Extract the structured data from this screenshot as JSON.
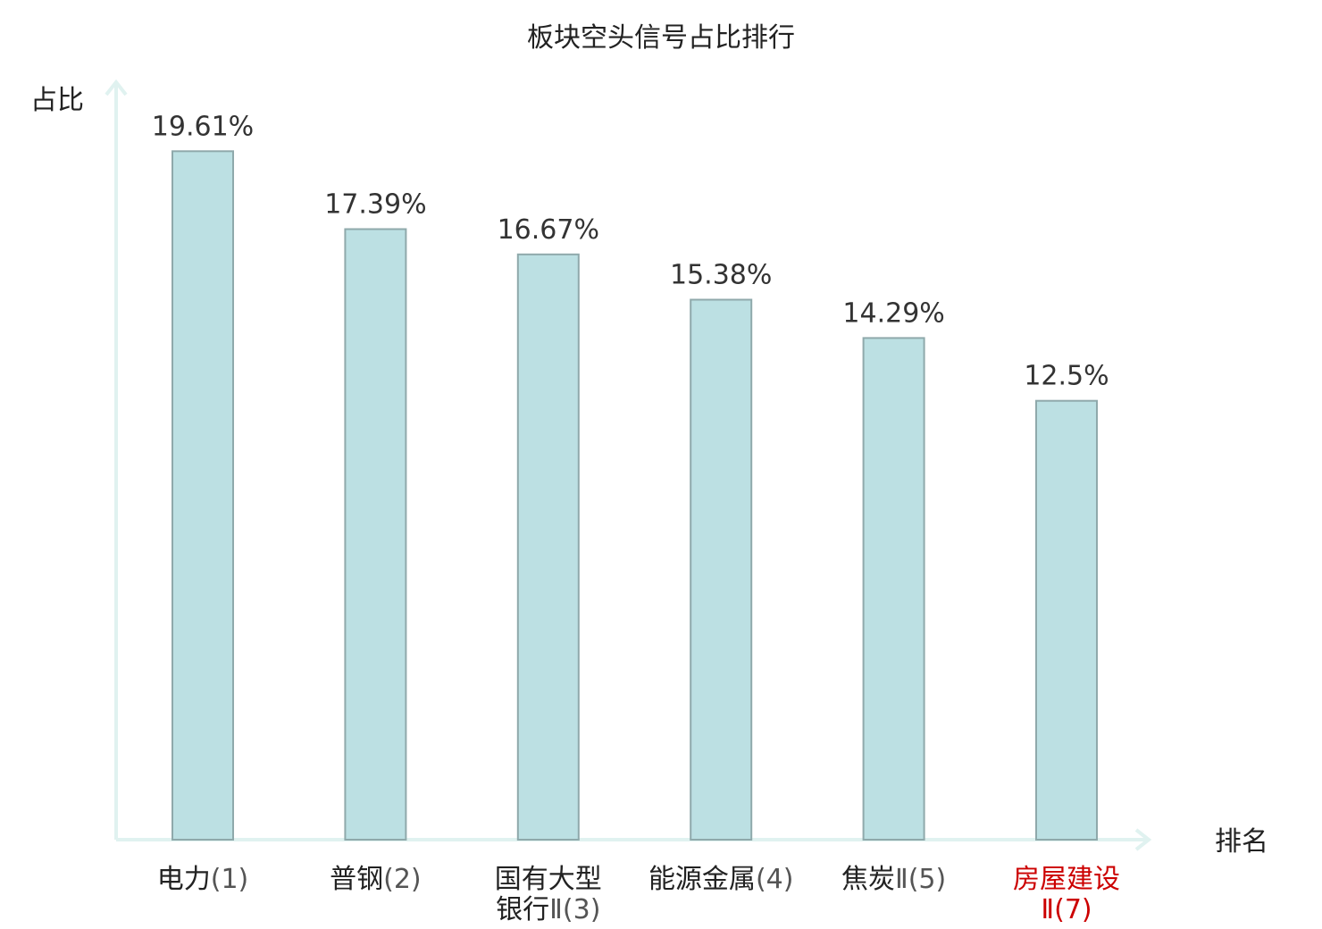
{
  "chart_data": {
    "type": "bar",
    "title": "板块空头信号占比排行",
    "ylabel": "占比",
    "xlabel": "排名",
    "ylim": [
      0,
      21.5
    ],
    "grid": false,
    "legend": "none",
    "bar_color": "#bce0e3",
    "bar_stroke": "#8fa9ab",
    "axis_color": "#e0f2f0",
    "highlight_color": "#cc0000",
    "categories": [
      {
        "lines": [
          {
            "main": "电力",
            "rank": "(1)"
          }
        ],
        "highlight": false
      },
      {
        "lines": [
          {
            "main": "普钢",
            "rank": "(2)"
          }
        ],
        "highlight": false
      },
      {
        "lines": [
          {
            "main": "国有大型",
            "rank": ""
          },
          {
            "main": "银行",
            "rank": "Ⅱ(3)"
          }
        ],
        "highlight": false
      },
      {
        "lines": [
          {
            "main": "能源金属",
            "rank": "(4)"
          }
        ],
        "highlight": false
      },
      {
        "lines": [
          {
            "main": "焦炭",
            "rank": "Ⅱ(5)"
          }
        ],
        "highlight": false
      },
      {
        "lines": [
          {
            "main": "房屋建设",
            "rank": ""
          },
          {
            "main": "",
            "rank": "Ⅱ(7)"
          }
        ],
        "highlight": true
      }
    ],
    "values": [
      19.61,
      17.39,
      16.67,
      15.38,
      14.29,
      12.5
    ],
    "value_labels": [
      "19.61%",
      "17.39%",
      "16.67%",
      "15.38%",
      "14.29%",
      "12.5%"
    ]
  }
}
